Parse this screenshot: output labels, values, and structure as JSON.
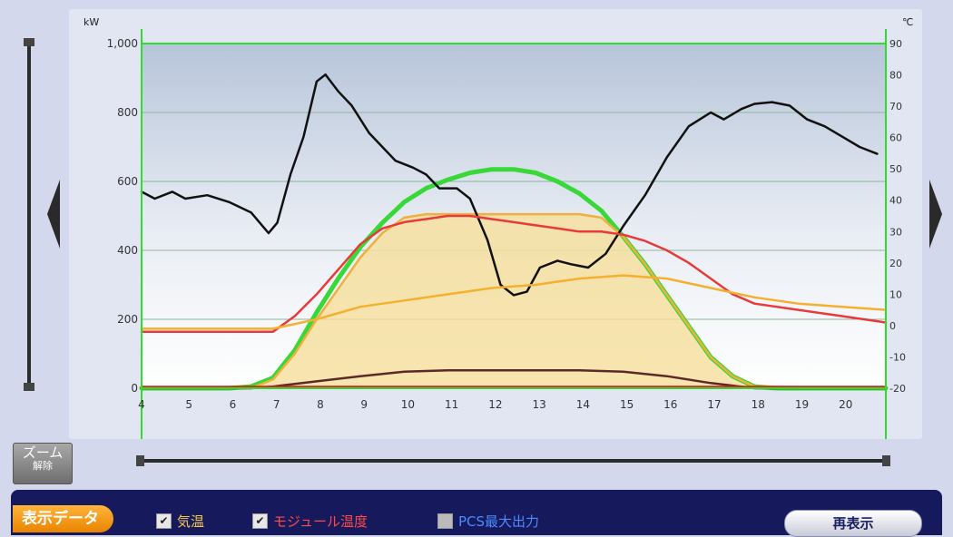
{
  "chart_data": {
    "type": "line",
    "y_left_unit": "kW",
    "y_right_unit": "℃",
    "ylim_left": [
      0,
      1000
    ],
    "ylim_right": [
      -20,
      90
    ],
    "y_left_ticks": [
      "0",
      "200",
      "400",
      "600",
      "800",
      "1,000"
    ],
    "y_right_ticks": [
      "-20",
      "-10",
      "0",
      "10",
      "20",
      "30",
      "40",
      "50",
      "60",
      "70",
      "80",
      "90"
    ],
    "x_ticks": [
      "4",
      "5",
      "6",
      "7",
      "8",
      "9",
      "10",
      "11",
      "12",
      "13",
      "14",
      "15",
      "16",
      "17",
      "18",
      "19",
      "20"
    ],
    "xlim": [
      4,
      21
    ],
    "grid": true,
    "series": [
      {
        "axis": "left",
        "color": "#38d838",
        "fill": "none",
        "x": [
          4,
          6,
          6.5,
          7,
          7.5,
          8,
          8.5,
          9,
          9.5,
          10,
          10.5,
          11,
          11.5,
          12,
          12.5,
          13,
          13.5,
          14,
          14.5,
          15,
          15.5,
          16,
          16.5,
          17,
          17.5,
          18,
          18.5,
          21
        ],
        "values": [
          0,
          0,
          5,
          30,
          110,
          220,
          320,
          410,
          480,
          540,
          580,
          605,
          625,
          635,
          635,
          625,
          600,
          565,
          515,
          440,
          360,
          270,
          180,
          90,
          35,
          5,
          0,
          0
        ]
      },
      {
        "axis": "left",
        "color": "#f0b040",
        "fill": "#f6dfa0",
        "x": [
          4,
          6.5,
          7,
          7.5,
          8,
          8.5,
          9,
          9.5,
          10,
          10.5,
          11,
          12,
          13,
          14,
          14.5,
          15,
          15.5,
          16,
          16.5,
          17,
          17.5,
          18,
          21
        ],
        "values": [
          0,
          0,
          25,
          100,
          200,
          290,
          380,
          450,
          495,
          505,
          505,
          505,
          505,
          505,
          495,
          440,
          360,
          270,
          180,
          90,
          35,
          5,
          0
        ]
      },
      {
        "axis": "left",
        "color": "#5a2a2a",
        "fill": "none",
        "x": [
          4,
          6.5,
          7,
          8,
          9,
          10,
          11,
          12,
          13,
          14,
          15,
          16,
          17,
          18,
          21
        ],
        "values": [
          0,
          0,
          5,
          20,
          35,
          48,
          52,
          52,
          52,
          52,
          48,
          35,
          15,
          0,
          0
        ]
      },
      {
        "axis": "left",
        "color": "#e02020",
        "fill": "none",
        "x": [
          4,
          21
        ],
        "values": [
          4,
          4
        ]
      },
      {
        "axis": "left",
        "color": "#111111",
        "fill": "none",
        "x": [
          4,
          4.3,
          4.7,
          5,
          5.5,
          6,
          6.5,
          6.9,
          7.1,
          7.4,
          7.7,
          8,
          8.2,
          8.5,
          8.8,
          9.2,
          9.5,
          9.8,
          10.2,
          10.5,
          10.8,
          11.2,
          11.5,
          11.9,
          12.2,
          12.5,
          12.8,
          13.1,
          13.5,
          13.8,
          14.2,
          14.6,
          15,
          15.5,
          16,
          16.5,
          17,
          17.3,
          17.7,
          18,
          18.4,
          18.8,
          19.2,
          19.6,
          20,
          20.4,
          20.8
        ],
        "values": [
          570,
          550,
          570,
          550,
          560,
          540,
          510,
          450,
          480,
          620,
          730,
          890,
          910,
          860,
          820,
          740,
          700,
          660,
          640,
          620,
          580,
          580,
          550,
          430,
          300,
          270,
          280,
          350,
          370,
          360,
          350,
          390,
          470,
          560,
          670,
          760,
          800,
          780,
          810,
          825,
          830,
          820,
          780,
          760,
          730,
          700,
          680
        ]
      },
      {
        "axis": "right",
        "color": "#e83a3a",
        "fill": "none",
        "x": [
          4,
          5,
          6,
          7,
          7.5,
          8,
          8.5,
          9,
          9.5,
          10,
          10.5,
          11,
          11.5,
          12,
          12.5,
          13,
          13.5,
          14,
          14.5,
          15,
          15.5,
          16,
          16.5,
          17,
          17.5,
          18,
          19,
          20,
          21
        ],
        "values": [
          -2,
          -2,
          -2,
          -2,
          3,
          10,
          18,
          26,
          31,
          33,
          34,
          35,
          35,
          34,
          33,
          32,
          31,
          30,
          30,
          29,
          27,
          24,
          20,
          15,
          10,
          7,
          5,
          3,
          1
        ]
      },
      {
        "axis": "right",
        "color": "#f5b030",
        "fill": "none",
        "x": [
          4,
          5,
          6,
          7,
          8,
          9,
          10,
          11,
          12,
          13,
          14,
          15,
          16,
          17,
          18,
          19,
          20,
          21
        ],
        "values": [
          -1,
          -1,
          -1,
          -1,
          2,
          6,
          8,
          10,
          12,
          13,
          15,
          16,
          15,
          12,
          9,
          7,
          6,
          5
        ]
      }
    ]
  },
  "controls": {
    "zoom_reset_line1": "ズーム",
    "zoom_reset_line2": "解除",
    "data_label": "表示データ",
    "checkboxes": [
      {
        "label": "気温",
        "checked": true,
        "color": "#f5c84a"
      },
      {
        "label": "モジュール温度",
        "checked": true,
        "color": "#ff4a4a"
      },
      {
        "label": "PCS最大出力",
        "checked": false,
        "color": "#4a8cff"
      }
    ],
    "redraw_label": "再表示"
  }
}
